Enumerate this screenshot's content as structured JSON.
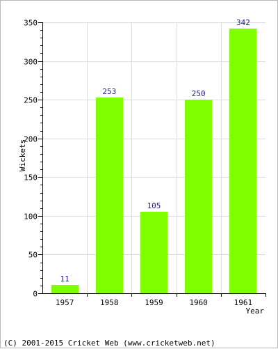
{
  "footer": "(C) 2001-2015 Cricket Web (www.cricketweb.net)",
  "chart_data": {
    "type": "bar",
    "categories": [
      "1957",
      "1958",
      "1959",
      "1960",
      "1961"
    ],
    "values": [
      11,
      253,
      105,
      250,
      342
    ],
    "data_labels": [
      "11",
      "253",
      "105",
      "250",
      "342"
    ],
    "xlabel": "Year",
    "ylabel": "Wickets",
    "ylim": [
      0,
      350
    ],
    "yticks": [
      0,
      50,
      100,
      150,
      200,
      250,
      300,
      350
    ],
    "grid": true,
    "bar_color": "#80ff00",
    "label_color": "#1a1a8c",
    "grid_color": "#dddddd"
  }
}
